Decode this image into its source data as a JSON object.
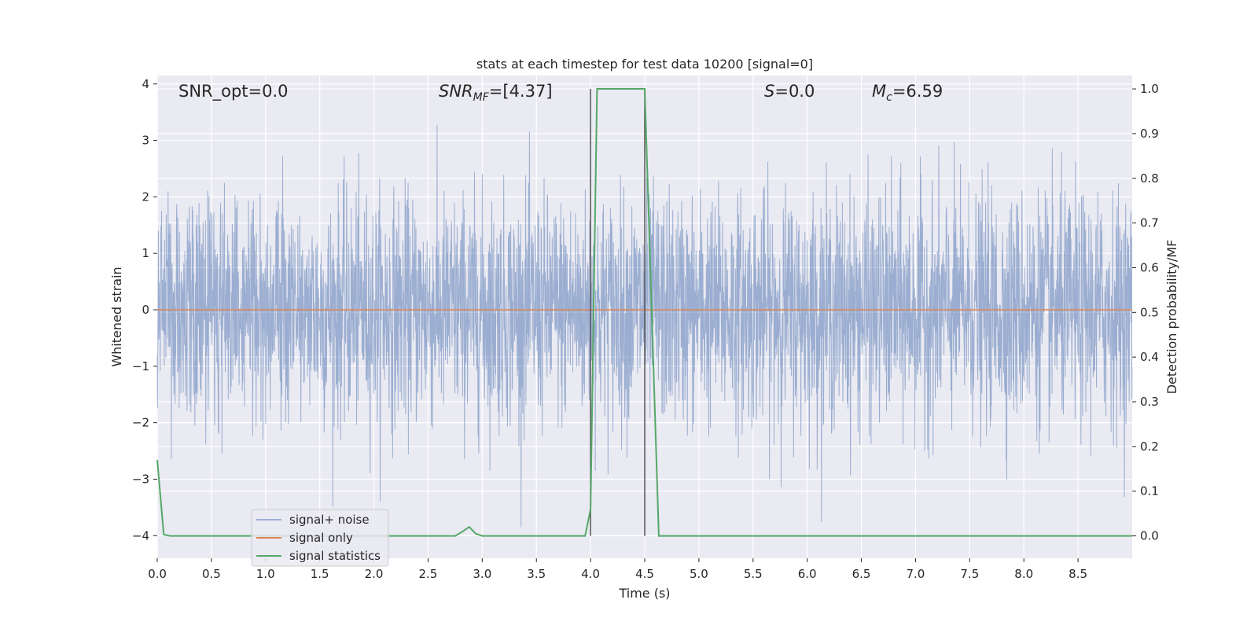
{
  "chart_data": {
    "type": "line",
    "title": "stats at each timestep for test data 10200 [signal=0]",
    "xlabel": "Time (s)",
    "ylabel_left": "Whitened strain",
    "ylabel_right": "Detection probability/MF",
    "xlim": [
      0.0,
      9.0
    ],
    "ylim_left": [
      -4.4,
      4.15
    ],
    "ylim_right": [
      -0.05,
      1.03
    ],
    "x_ticks": [
      "0.0",
      "0.5",
      "1.0",
      "1.5",
      "2.0",
      "2.5",
      "3.0",
      "3.5",
      "4.0",
      "4.5",
      "5.0",
      "5.5",
      "6.0",
      "6.5",
      "7.0",
      "7.5",
      "8.0",
      "8.5"
    ],
    "y_ticks_left": [
      "−4",
      "−3",
      "−2",
      "−1",
      "0",
      "1",
      "2",
      "3",
      "4"
    ],
    "y_ticks_right": [
      "0.0",
      "0.1",
      "0.2",
      "0.3",
      "0.4",
      "0.5",
      "0.6",
      "0.7",
      "0.8",
      "0.9",
      "1.0"
    ],
    "grid": true,
    "legend_location": "lower-left",
    "annotations": {
      "snr_opt": "SNR_opt=0.0",
      "snr_mf_main": "SNR",
      "snr_mf_sub": "MF",
      "snr_mf_value": "=[4.37]",
      "s_symbol": "S",
      "s_value": "=0.0",
      "mc_main": "M",
      "mc_sub": "c",
      "mc_value": "=6.59"
    },
    "vertical_markers": [
      4.0,
      4.5
    ],
    "series": [
      {
        "name": "signal+ noise",
        "axis": "left",
        "color": "#4c72b0",
        "note": "dense whitened strain noise, approx. std 1.0 sampled over 0–9 s"
      },
      {
        "name": "signal only",
        "axis": "left",
        "color": "#dd8452",
        "x": [
          0.0,
          9.0
        ],
        "y": [
          0.0,
          0.0
        ]
      },
      {
        "name": "signal statistics",
        "axis": "right",
        "color": "#55a868",
        "x": [
          0.0,
          0.06,
          0.12,
          2.75,
          2.82,
          2.88,
          2.94,
          3.0,
          3.95,
          4.0,
          4.06,
          4.5,
          4.63,
          9.0
        ],
        "y": [
          0.17,
          0.003,
          0.0,
          0.0,
          0.01,
          0.02,
          0.005,
          0.0,
          0.0,
          0.06,
          1.0,
          1.0,
          0.0,
          0.0
        ]
      }
    ]
  },
  "colors": {
    "axes_bg": "#eaeaf2",
    "grid": "#ffffff",
    "noise": "#4c72b0",
    "signal_only": "#dd8452",
    "statistics": "#55a868",
    "marker": "#555555"
  }
}
